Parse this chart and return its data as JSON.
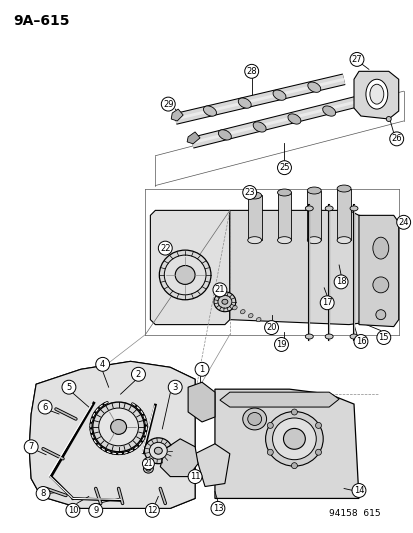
{
  "title": "9A–615",
  "ref_number": "94158  615",
  "bg_color": "#ffffff",
  "fg_color": "#000000",
  "fig_width": 4.14,
  "fig_height": 5.33,
  "dpi": 100
}
